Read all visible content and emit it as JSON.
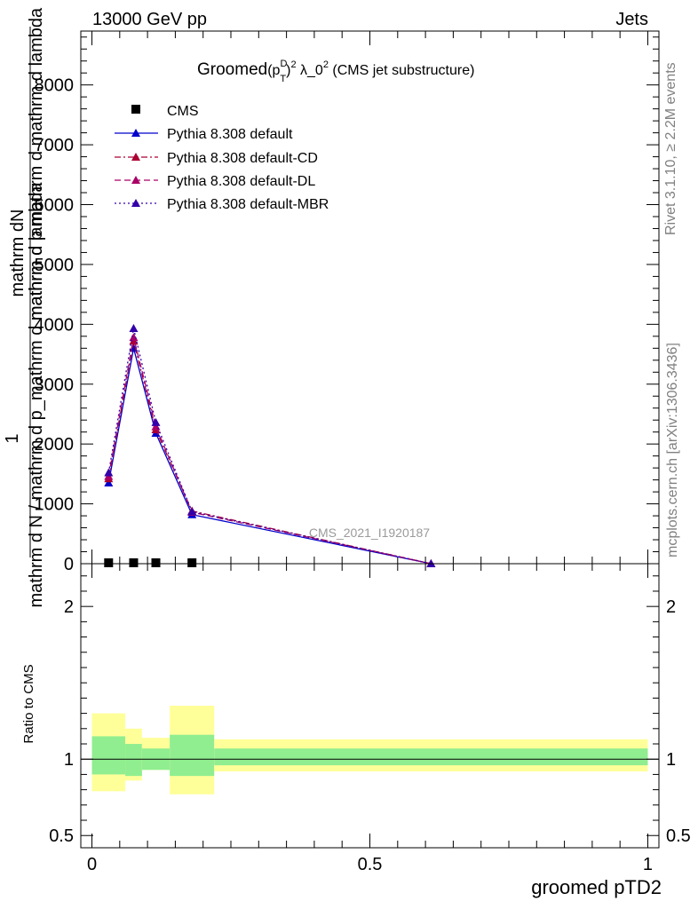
{
  "header": {
    "left": "13000 GeV pp",
    "right": "Jets"
  },
  "side": {
    "rivet": "Rivet 3.1.10, ≥ 2.2M events",
    "mcplots": "mcplots.cern.ch [arXiv:1306.3436]"
  },
  "title": {
    "prefix": "Groomed",
    "p": "(p",
    "sup_d": "D",
    "sub_t": "T",
    "close": ")",
    "sup2": "2",
    "rest": " λ_0",
    "sup0": "2",
    "suffix": " (CMS jet substructure)"
  },
  "ylabel": {
    "numerator": "1",
    "denominator": "mathrm d N / mathrm d p_mathrm d mathrm d lambda",
    "top_num": "mathrm d",
    "top_n": "N",
    "top_den": "mathrm d p mathrm d mathrm d lambda"
  },
  "xlabel": "groomed pTD2",
  "ratio_label": "Ratio to CMS",
  "watermark": "CMS_2021_I1920187",
  "chart_data": {
    "type": "line",
    "main": {
      "xlim": [
        -0.02,
        1.02
      ],
      "ylim": [
        0,
        8900
      ],
      "yticks": [
        0,
        1000,
        2000,
        3000,
        4000,
        5000,
        6000,
        7000,
        8000
      ],
      "ytick_labels": [
        "0",
        "1000",
        "2000",
        "3000",
        "4000",
        "5000",
        "6000",
        "7000",
        "8000"
      ]
    },
    "ratio": {
      "ylim": [
        0.42,
        2.28
      ],
      "yticks": [
        0.5,
        1,
        2
      ],
      "ytick_labels": [
        "0.5",
        "1",
        "2"
      ],
      "xticks": [
        0,
        0.5,
        1
      ],
      "xtick_labels": [
        "0",
        "0.5",
        "1"
      ],
      "bands": [
        {
          "x0": 0.0,
          "x1": 0.06,
          "inner": [
            0.9,
            1.15
          ],
          "outer": [
            0.79,
            1.3
          ]
        },
        {
          "x0": 0.06,
          "x1": 0.09,
          "inner": [
            0.89,
            1.1
          ],
          "outer": [
            0.86,
            1.2
          ]
        },
        {
          "x0": 0.09,
          "x1": 0.14,
          "inner": [
            0.93,
            1.07
          ],
          "outer": [
            0.93,
            1.14
          ]
        },
        {
          "x0": 0.14,
          "x1": 0.22,
          "inner": [
            0.89,
            1.16
          ],
          "outer": [
            0.77,
            1.35
          ]
        },
        {
          "x0": 0.22,
          "x1": 1.0,
          "inner": [
            0.96,
            1.07
          ],
          "outer": [
            0.92,
            1.13
          ]
        }
      ],
      "colors": {
        "inner": "#90ee90",
        "outer": "#ffff99"
      }
    },
    "legend_placement": "top-left",
    "series": [
      {
        "name": "CMS",
        "style": "data",
        "color": "#000000",
        "marker": "square",
        "x": [
          0.03,
          0.075,
          0.115,
          0.18
        ],
        "y": [
          0,
          0,
          0,
          0
        ]
      },
      {
        "name": "Pythia 8.308 default",
        "style": "solid",
        "color": "#0000cc",
        "marker": "triangle",
        "x": [
          0.03,
          0.075,
          0.115,
          0.18,
          0.61
        ],
        "y": [
          1350,
          3600,
          2180,
          820,
          0
        ]
      },
      {
        "name": "Pythia 8.308 default-CD",
        "style": "dashdot",
        "color": "#aa0033",
        "marker": "triangle",
        "x": [
          0.03,
          0.075,
          0.115,
          0.18,
          0.61
        ],
        "y": [
          1420,
          3720,
          2240,
          880,
          0
        ]
      },
      {
        "name": "Pythia 8.308 default-DL",
        "style": "dashed",
        "color": "#aa0066",
        "marker": "triangle",
        "x": [
          0.03,
          0.075,
          0.115,
          0.18,
          0.61
        ],
        "y": [
          1460,
          3780,
          2290,
          860,
          0
        ]
      },
      {
        "name": "Pythia 8.308 default-MBR",
        "style": "dotted",
        "color": "#3300aa",
        "marker": "triangle",
        "x": [
          0.03,
          0.075,
          0.115,
          0.18,
          0.61
        ],
        "y": [
          1520,
          3930,
          2360,
          870,
          0
        ]
      }
    ]
  }
}
